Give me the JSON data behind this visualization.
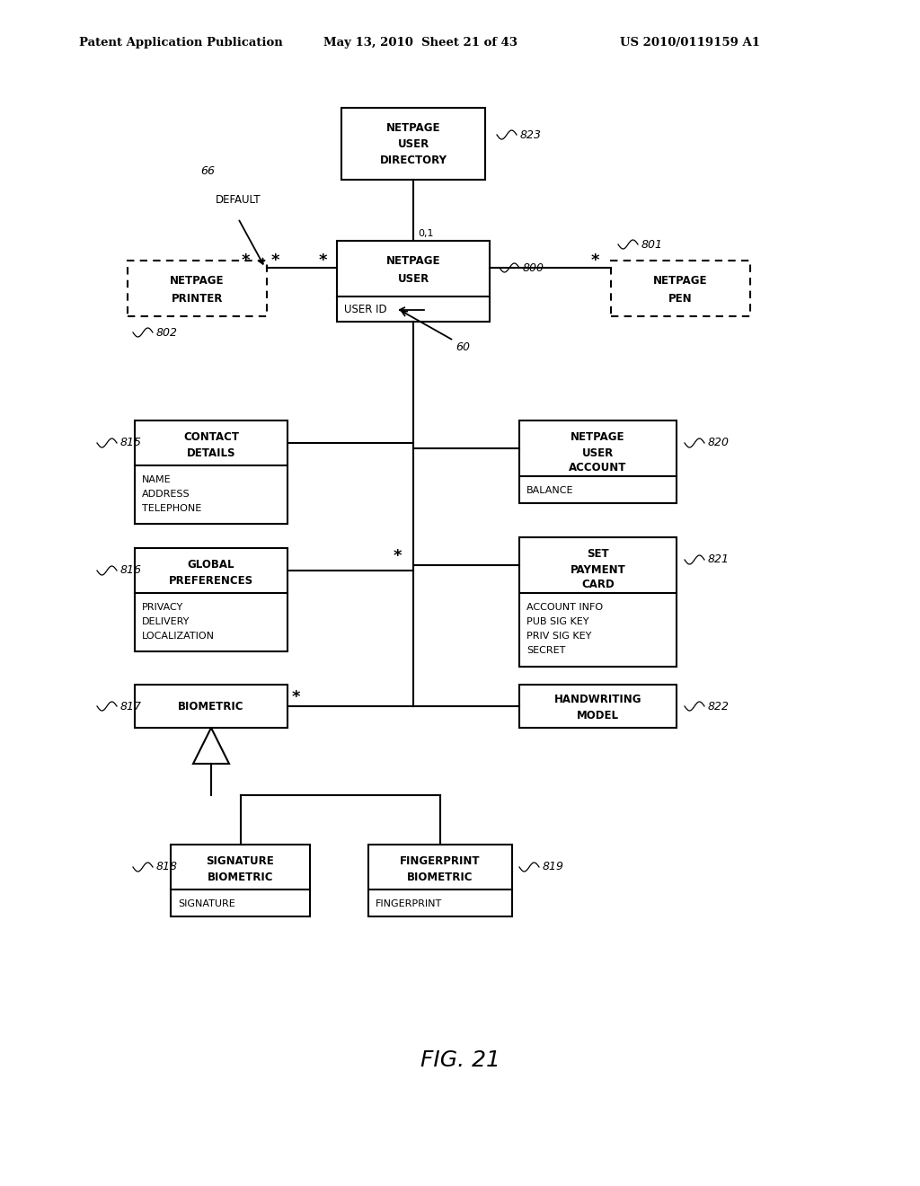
{
  "bg_color": "#ffffff",
  "header_left": "Patent Application Publication",
  "header_mid": "May 13, 2010  Sheet 21 of 43",
  "header_right": "US 2010/0119159 A1",
  "fig_label": "FIG. 21"
}
